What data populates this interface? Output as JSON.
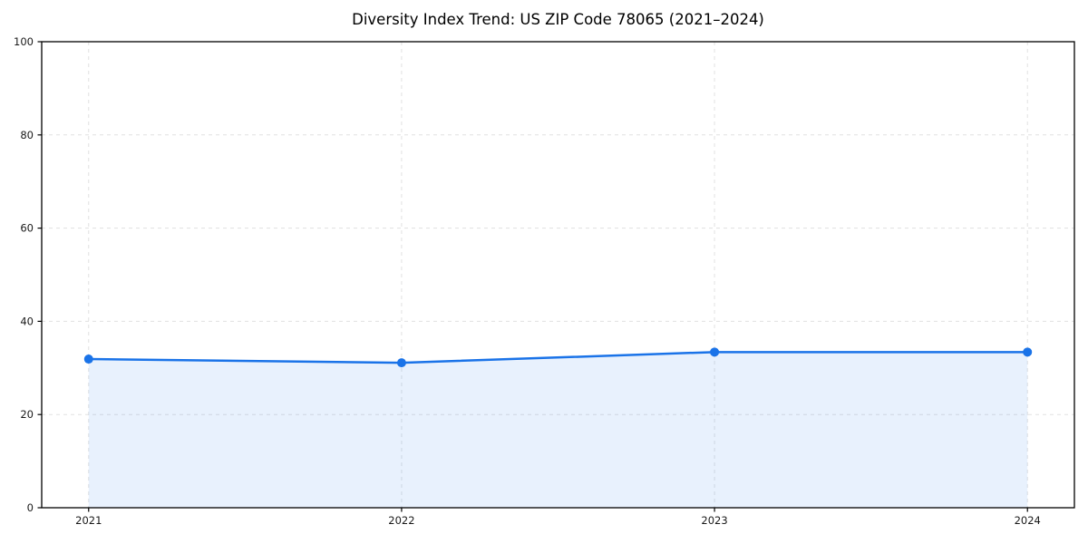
{
  "figure": {
    "background_color": "#ffffff"
  },
  "chart_data": {
    "type": "area",
    "title": "Diversity Index Trend: US ZIP Code 78065 (2021–2024)",
    "xlabel": "",
    "ylabel": "",
    "x": [
      2021,
      2022,
      2023,
      2024
    ],
    "series": [
      {
        "name": "Diversity Index",
        "values": [
          31.9,
          31.1,
          33.4,
          33.4
        ]
      }
    ],
    "xticks": [
      2021,
      2022,
      2023,
      2024
    ],
    "xtick_labels": [
      "2021",
      "2022",
      "2023",
      "2024"
    ],
    "yticks": [
      0,
      20,
      40,
      60,
      80,
      100
    ],
    "ytick_labels": [
      "0",
      "20",
      "40",
      "60",
      "80",
      "100"
    ],
    "ylim": [
      0,
      100
    ],
    "x_margin_fraction": 0.05,
    "grid": "dashed",
    "legend_position": "none",
    "marker": "circle",
    "line_color": "#1a73e8",
    "fill_color": "rgba(26,115,232,0.10)",
    "grid_color": "#dcdcdc",
    "axis_color": "#000000",
    "tick_label_color": "#1a1a1a"
  }
}
